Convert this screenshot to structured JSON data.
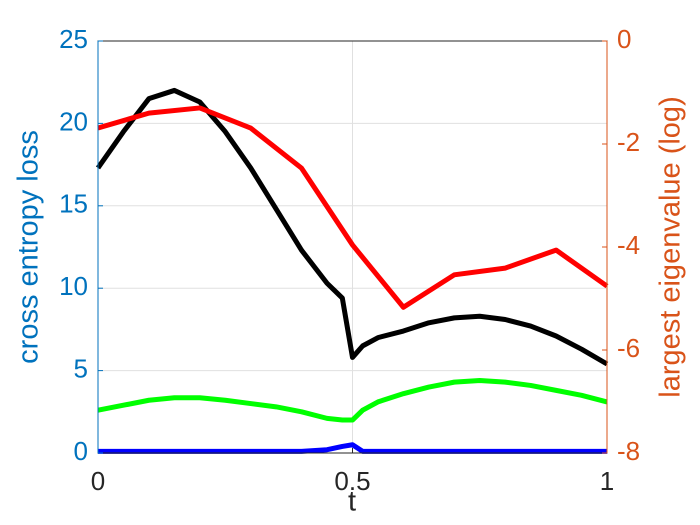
{
  "chart_data": {
    "type": "line",
    "x": [
      0,
      0.05,
      0.1,
      0.15,
      0.2,
      0.25,
      0.3,
      0.35,
      0.4,
      0.45,
      0.48,
      0.5,
      0.52,
      0.55,
      0.6,
      0.65,
      0.7,
      0.75,
      0.8,
      0.85,
      0.9,
      0.95,
      1
    ],
    "x_label": "t",
    "y_label": "cross entropy loss",
    "y2_label": "largest eigenvalue (log)",
    "y_color": "#0072bd",
    "y2_color": "#d95319",
    "xlim": [
      0,
      1
    ],
    "xticks": [
      0,
      0.5,
      1
    ],
    "ylim": [
      0,
      25
    ],
    "yticks": [
      0,
      5,
      10,
      15,
      20,
      25
    ],
    "y2lim": [
      -8,
      0
    ],
    "y2ticks": [
      -8,
      -6,
      -4,
      -2,
      0
    ],
    "grid": true,
    "series": [
      {
        "color": "#000000",
        "values": [
          17.3,
          19.5,
          21.5,
          22.0,
          21.3,
          19.5,
          17.3,
          14.8,
          12.3,
          10.3,
          9.4,
          5.8,
          6.5,
          7.0,
          7.4,
          7.9,
          8.2,
          8.3,
          8.1,
          7.7,
          7.1,
          6.3,
          5.4
        ]
      },
      {
        "color": "#00ff00",
        "values": [
          2.6,
          2.9,
          3.2,
          3.35,
          3.35,
          3.2,
          3.0,
          2.8,
          2.5,
          2.1,
          2.0,
          2.0,
          2.6,
          3.1,
          3.6,
          4.0,
          4.3,
          4.4,
          4.3,
          4.1,
          3.8,
          3.5,
          3.1
        ]
      },
      {
        "color": "#0000ff",
        "values": [
          0.1,
          0.1,
          0.1,
          0.1,
          0.1,
          0.1,
          0.1,
          0.1,
          0.1,
          0.2,
          0.4,
          0.5,
          0.1,
          0.1,
          0.1,
          0.1,
          0.1,
          0.1,
          0.1,
          0.1,
          0.1,
          0.1,
          0.1
        ]
      },
      {
        "color": "#ff0000",
        "axis": "y2",
        "values": [
          -1.69,
          null,
          -1.4,
          null,
          -1.3,
          null,
          -1.69,
          null,
          -2.47,
          null,
          null,
          -3.96,
          null,
          null,
          -5.17,
          null,
          -4.54,
          null,
          -4.41,
          null,
          -4.06,
          null,
          -4.76
        ]
      }
    ]
  }
}
